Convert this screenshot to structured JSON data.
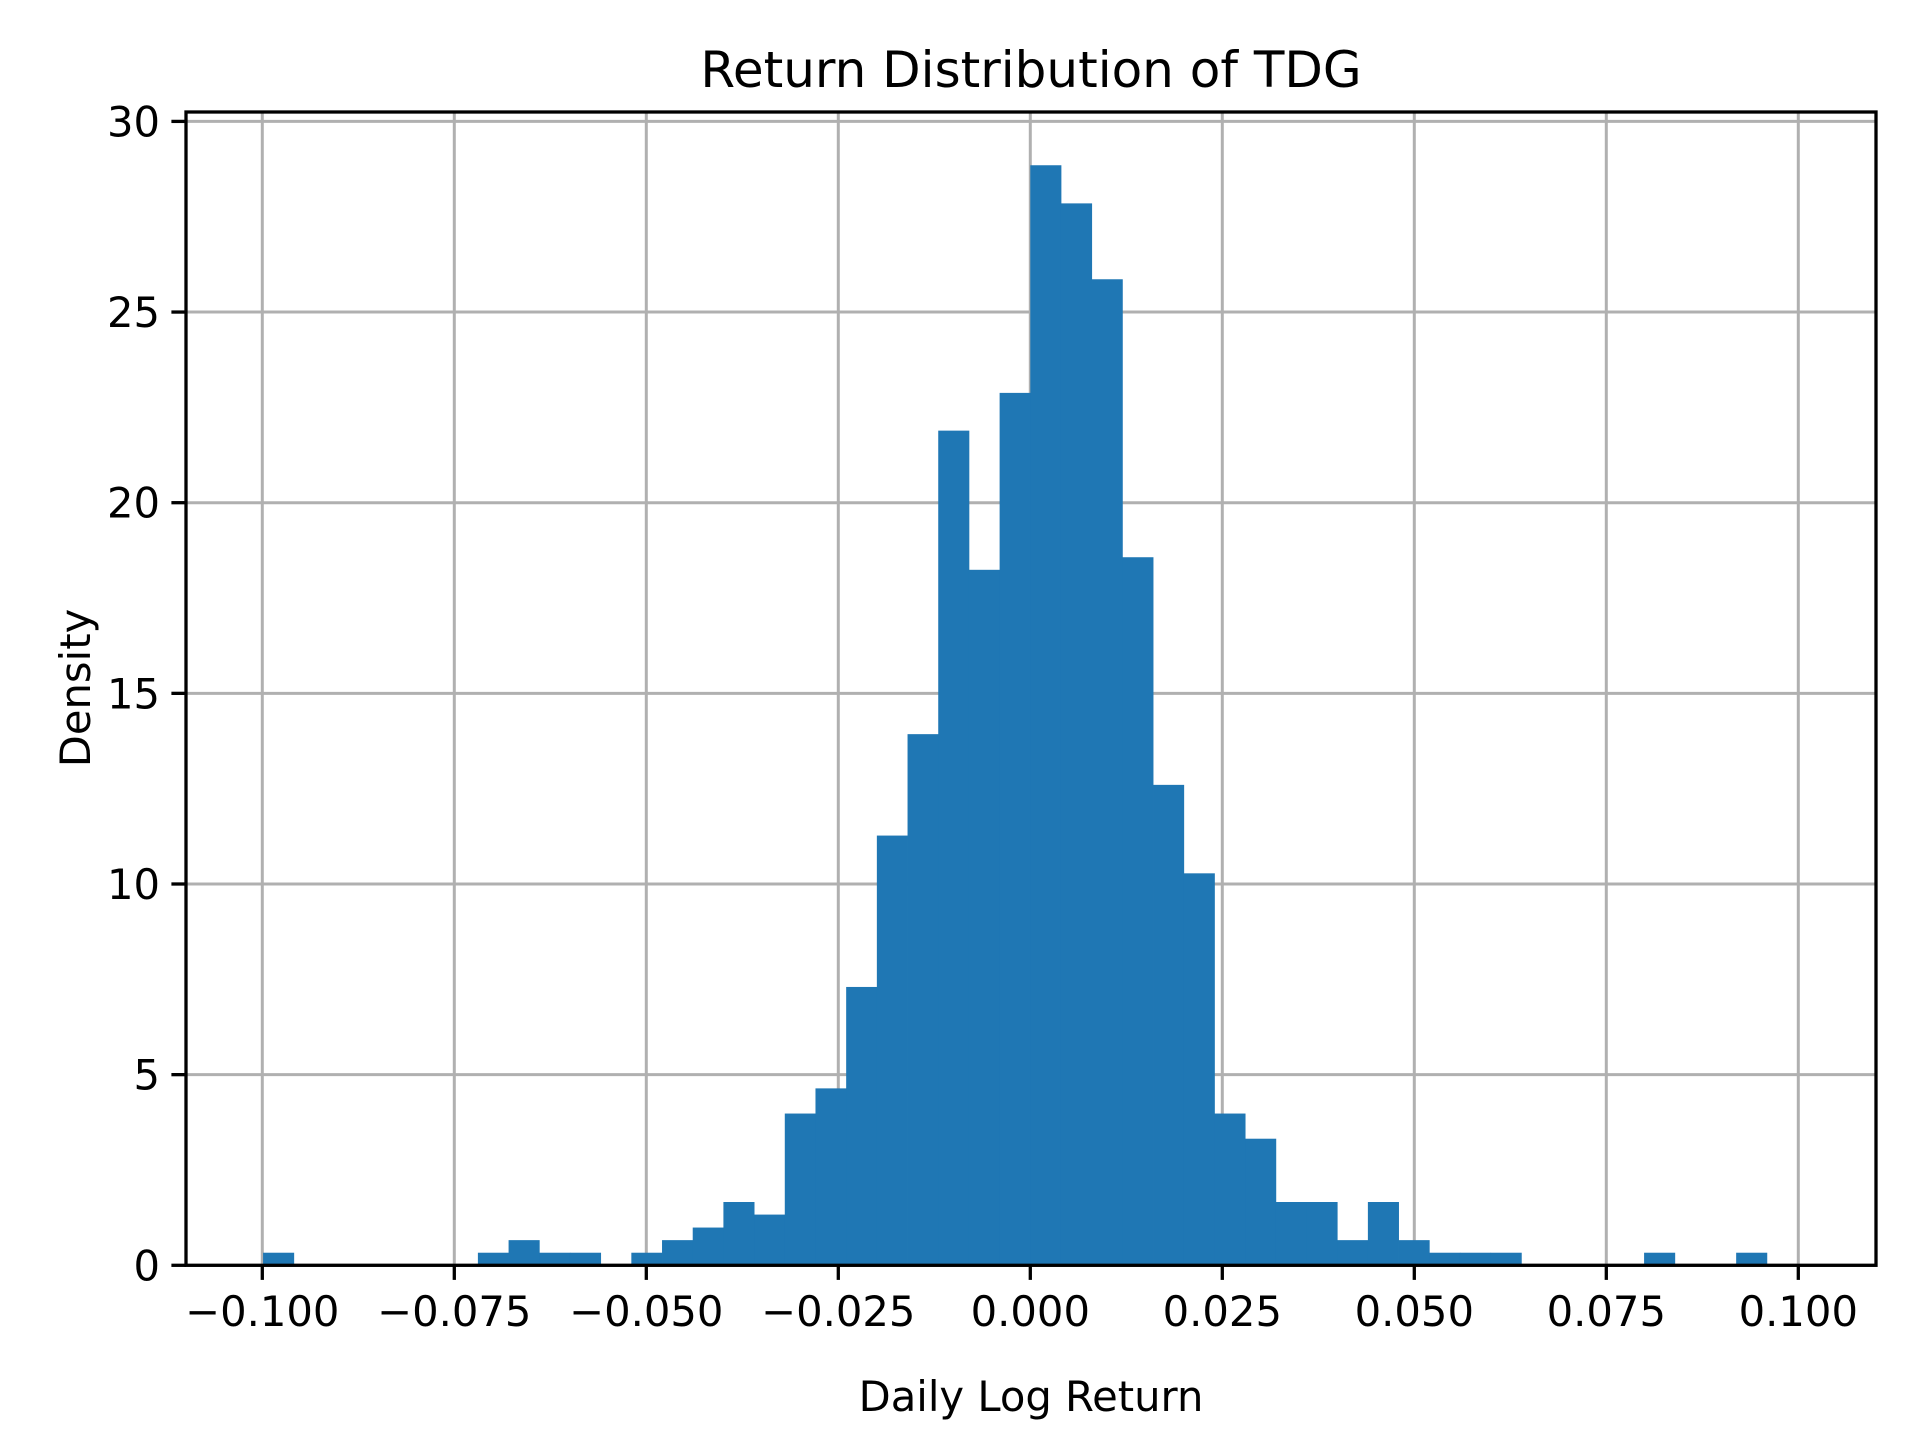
{
  "chart_data": {
    "type": "bar",
    "subtype": "histogram",
    "title": "Return Distribution of TDG",
    "xlabel": "Daily Log Return",
    "ylabel": "Density",
    "xlim": [
      -0.1077,
      0.1101
    ],
    "ylim": [
      0,
      30.3
    ],
    "xticks": [
      -0.1,
      -0.075,
      -0.05,
      -0.025,
      0.0,
      0.025,
      0.05,
      0.075,
      0.1
    ],
    "xtick_labels": [
      "−0.100",
      "−0.075",
      "−0.050",
      "−0.025",
      "0.000",
      "0.025",
      "0.050",
      "0.075",
      "0.100"
    ],
    "yticks": [
      0,
      5,
      10,
      15,
      20,
      25,
      30
    ],
    "ytick_labels": [
      "0",
      "5",
      "10",
      "15",
      "20",
      "25",
      "30"
    ],
    "grid": true,
    "legend": null,
    "bar_color": "#1f77b4",
    "bin_start": -0.0999,
    "bin_width": 0.003996,
    "bin_count": 49,
    "values": [
      0.33,
      0,
      0,
      0,
      0,
      0,
      0,
      0.33,
      0.66,
      0.33,
      0.33,
      0,
      0.33,
      0.66,
      0.99,
      1.66,
      1.33,
      3.98,
      4.64,
      7.3,
      11.27,
      13.93,
      21.89,
      18.24,
      22.88,
      28.85,
      27.85,
      25.86,
      18.57,
      12.6,
      10.28,
      3.98,
      3.32,
      1.66,
      1.66,
      0.66,
      1.66,
      0.66,
      0.33,
      0.33,
      0.33,
      0,
      0,
      0,
      0,
      0.33,
      0,
      0,
      0.33
    ]
  },
  "colors": {
    "bar": "#1f77b4",
    "grid": "#b0b0b0",
    "axis": "#000000",
    "background": "#ffffff"
  }
}
